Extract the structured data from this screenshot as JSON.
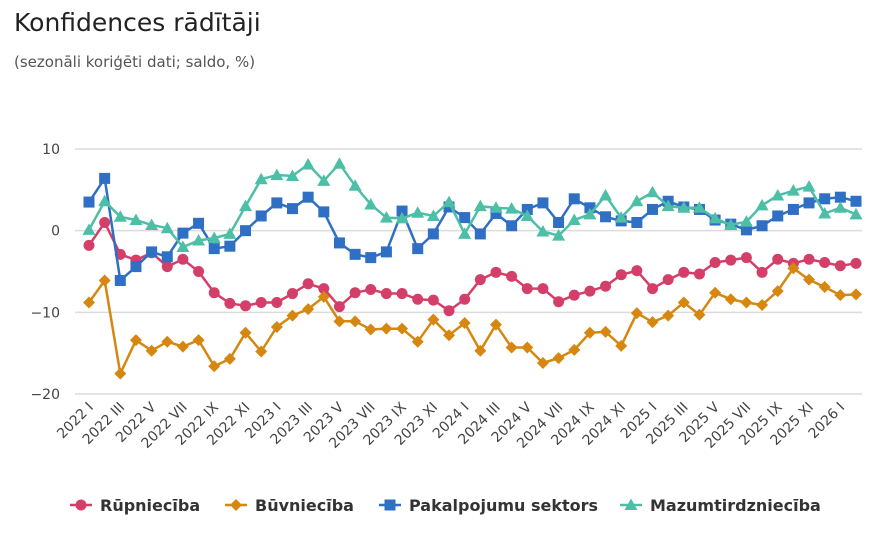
{
  "chart_data": {
    "type": "line",
    "title": "Konfidences rādītāji",
    "subtitle": "(sezonāli koriģēti dati; saldo, %)",
    "xlabel": "",
    "ylabel": "",
    "ylim": [
      -20,
      10
    ],
    "yticks": [
      "10",
      "0",
      "−10",
      "−20"
    ],
    "yticks_values": [
      10,
      0,
      -10,
      -20
    ],
    "grid": true,
    "legend_position": "bottom",
    "categories": [
      "2022 I",
      "2022 II",
      "2022 III",
      "2022 IV",
      "2022 V",
      "2022 VI",
      "2022 VII",
      "2022 VIII",
      "2022 IX",
      "2022 X",
      "2022 XI",
      "2022 XII",
      "2023 I",
      "2023 II",
      "2023 III",
      "2023 IV",
      "2023 V",
      "2023 VI",
      "2023 VII",
      "2023 VIII",
      "2023 IX",
      "2023 X",
      "2023 XI",
      "2023 XII",
      "2024 I",
      "2024 II",
      "2024 III",
      "2024 IV",
      "2024 V",
      "2024 VI",
      "2024 VII",
      "2024 VIII",
      "2024 IX",
      "2024 X",
      "2024 XI",
      "2024 XII",
      "2025 I",
      "2025 II",
      "2025 III",
      "2025 IV",
      "2025 V",
      "2025 VI",
      "2025 VII",
      "2025 VIII",
      "2025 IX",
      "2025 X",
      "2025 XI",
      "2025 XII",
      "2026 I",
      "2026 II"
    ],
    "xtick_labels": [
      "2022 I",
      "2022 III",
      "2022 V",
      "2022 VII",
      "2022 IX",
      "2022 XI",
      "2023 I",
      "2023 III",
      "2023 V",
      "2023 VII",
      "2023 IX",
      "2023 XI",
      "2024 I",
      "2024 III",
      "2024 V",
      "2024 VII",
      "2024 IX",
      "2024 XI",
      "2025 I",
      "2025 III",
      "2025 V",
      "2025 VII",
      "2025 IX",
      "2025 XI",
      "2026 I"
    ],
    "series": [
      {
        "name": "Rūpniecība",
        "color": "#d43f6a",
        "marker": "circle",
        "values": [
          -1.8,
          1.0,
          -2.9,
          -3.6,
          -2.7,
          -4.4,
          -3.5,
          -5.0,
          -7.6,
          -8.9,
          -9.2,
          -8.8,
          -8.8,
          -7.7,
          -6.5,
          -7.1,
          -9.3,
          -7.6,
          -7.2,
          -7.7,
          -7.7,
          -8.4,
          -8.5,
          -9.8,
          -8.4,
          -6.0,
          -5.1,
          -5.6,
          -7.1,
          -7.1,
          -8.7,
          -7.9,
          -7.4,
          -6.8,
          -5.4,
          -4.9,
          -7.1,
          -6.0,
          -5.1,
          -5.3,
          -3.9,
          -3.6,
          -3.3,
          -5.1,
          -3.5,
          -4.0,
          -3.5,
          -3.9,
          -4.3,
          -4.0
        ]
      },
      {
        "name": "Būvniecība",
        "color": "#d6870f",
        "marker": "diamond",
        "values": [
          -8.8,
          -6.1,
          -17.5,
          -13.4,
          -14.7,
          -13.6,
          -14.2,
          -13.4,
          -16.6,
          -15.7,
          -12.5,
          -14.8,
          -11.8,
          -10.4,
          -9.6,
          -8.1,
          -11.1,
          -11.1,
          -12.1,
          -12.0,
          -12.0,
          -13.6,
          -10.9,
          -12.8,
          -11.3,
          -14.7,
          -11.5,
          -14.3,
          -14.3,
          -16.2,
          -15.6,
          -14.6,
          -12.5,
          -12.4,
          -14.1,
          -10.1,
          -11.2,
          -10.4,
          -8.8,
          -10.3,
          -7.6,
          -8.4,
          -8.8,
          -9.1,
          -7.4,
          -4.6,
          -6.0,
          -6.9,
          -7.9,
          -7.8
        ]
      },
      {
        "name": "Pakalpojumu sektors",
        "color": "#2f6fc4",
        "marker": "square",
        "values": [
          3.5,
          6.4,
          -6.1,
          -4.4,
          -2.6,
          -3.2,
          -0.3,
          0.9,
          -2.2,
          -1.9,
          0.0,
          1.8,
          3.4,
          2.7,
          4.1,
          2.3,
          -1.5,
          -2.9,
          -3.3,
          -2.6,
          2.4,
          -2.2,
          -0.4,
          2.9,
          1.6,
          -0.4,
          2.1,
          0.6,
          2.6,
          3.4,
          1.0,
          3.9,
          2.8,
          1.7,
          1.2,
          1.0,
          2.6,
          3.6,
          2.9,
          2.6,
          1.3,
          0.8,
          0.1,
          0.6,
          1.8,
          2.6,
          3.4,
          3.9,
          4.1,
          3.6
        ]
      },
      {
        "name": "Mazumtirdzniecība",
        "color": "#4dbfa6",
        "marker": "triangle",
        "values": [
          0.1,
          3.6,
          1.7,
          1.3,
          0.7,
          0.3,
          -2.0,
          -1.2,
          -0.9,
          -0.4,
          3.0,
          6.3,
          6.8,
          6.7,
          8.1,
          6.1,
          8.2,
          5.5,
          3.2,
          1.6,
          1.5,
          2.2,
          1.8,
          3.5,
          -0.4,
          3.0,
          2.8,
          2.7,
          1.8,
          -0.1,
          -0.6,
          1.3,
          2.0,
          4.3,
          1.6,
          3.6,
          4.7,
          3.0,
          2.8,
          2.8,
          1.5,
          0.7,
          1.1,
          3.1,
          4.3,
          4.9,
          5.4,
          2.1,
          2.8,
          2.0
        ]
      }
    ]
  }
}
